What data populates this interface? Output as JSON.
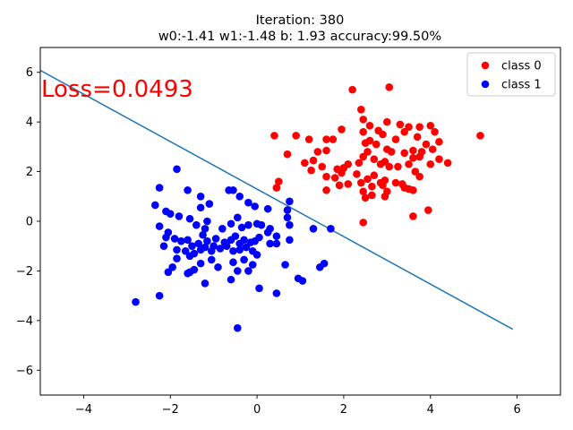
{
  "chart_data": {
    "type": "scatter",
    "title_line1": "Iteration: 380",
    "title_line2": "w0:-1.41 w1:-1.48 b: 1.93 accuracy:99.50%",
    "annotation": "Loss=0.0493",
    "annotation_color": "#ff0000",
    "xlim": [
      -5,
      7
    ],
    "ylim": [
      -7,
      7
    ],
    "xticks": [
      -4,
      -2,
      0,
      2,
      4,
      6
    ],
    "yticks": [
      -6,
      -4,
      -2,
      0,
      2,
      4,
      6
    ],
    "legend_position": "top-right",
    "decision_line": {
      "x": [
        -5,
        5.9
      ],
      "y": [
        6.08,
        -4.35
      ],
      "color": "#1f77b4"
    },
    "series": [
      {
        "name": "class 0",
        "color": "#ff0000",
        "points": [
          [
            2.2,
            5.3
          ],
          [
            3.05,
            5.4
          ],
          [
            2.4,
            4.5
          ],
          [
            2.45,
            4.1
          ],
          [
            3.0,
            4.0
          ],
          [
            3.3,
            3.9
          ],
          [
            3.5,
            3.8
          ],
          [
            3.75,
            3.8
          ],
          [
            3.4,
            3.6
          ],
          [
            4.0,
            3.85
          ],
          [
            4.1,
            3.6
          ],
          [
            5.15,
            3.45
          ],
          [
            0.4,
            3.45
          ],
          [
            0.9,
            3.45
          ],
          [
            1.2,
            3.3
          ],
          [
            1.6,
            3.3
          ],
          [
            1.75,
            3.3
          ],
          [
            1.95,
            3.7
          ],
          [
            2.45,
            3.6
          ],
          [
            2.8,
            3.65
          ],
          [
            2.9,
            3.5
          ],
          [
            3.2,
            3.3
          ],
          [
            3.7,
            3.4
          ],
          [
            4.2,
            3.2
          ],
          [
            2.6,
            3.25
          ],
          [
            2.75,
            3.1
          ],
          [
            2.5,
            3.15
          ],
          [
            3.0,
            2.9
          ],
          [
            3.1,
            2.8
          ],
          [
            3.4,
            2.75
          ],
          [
            3.6,
            2.85
          ],
          [
            3.8,
            2.8
          ],
          [
            4.05,
            2.9
          ],
          [
            3.9,
            3.1
          ],
          [
            1.4,
            2.8
          ],
          [
            1.6,
            2.85
          ],
          [
            0.7,
            2.7
          ],
          [
            1.1,
            2.35
          ],
          [
            1.3,
            2.45
          ],
          [
            1.5,
            2.2
          ],
          [
            1.25,
            2.05
          ],
          [
            1.85,
            2.1
          ],
          [
            1.95,
            1.95
          ],
          [
            2.0,
            2.15
          ],
          [
            2.1,
            2.3
          ],
          [
            2.35,
            2.35
          ],
          [
            2.45,
            2.6
          ],
          [
            2.55,
            2.8
          ],
          [
            2.7,
            2.5
          ],
          [
            2.85,
            2.3
          ],
          [
            2.95,
            2.4
          ],
          [
            3.05,
            2.2
          ],
          [
            3.25,
            2.2
          ],
          [
            3.5,
            2.3
          ],
          [
            3.6,
            2.55
          ],
          [
            3.75,
            2.6
          ],
          [
            4.0,
            2.3
          ],
          [
            4.2,
            2.5
          ],
          [
            4.4,
            2.35
          ],
          [
            3.65,
            2.0
          ],
          [
            3.75,
            1.8
          ],
          [
            2.3,
            1.9
          ],
          [
            2.55,
            1.7
          ],
          [
            2.7,
            1.85
          ],
          [
            2.85,
            1.55
          ],
          [
            2.95,
            1.65
          ],
          [
            3.2,
            1.55
          ],
          [
            3.35,
            1.5
          ],
          [
            3.5,
            1.3
          ],
          [
            3.6,
            1.25
          ],
          [
            3.4,
            1.35
          ],
          [
            1.6,
            1.8
          ],
          [
            1.8,
            1.75
          ],
          [
            1.9,
            1.45
          ],
          [
            2.1,
            1.5
          ],
          [
            2.4,
            1.55
          ],
          [
            2.65,
            1.4
          ],
          [
            2.9,
            1.45
          ],
          [
            1.6,
            1.25
          ],
          [
            2.45,
            1.2
          ],
          [
            2.5,
            0.95
          ],
          [
            2.65,
            1.05
          ],
          [
            2.95,
            1.0
          ],
          [
            3.0,
            1.2
          ],
          [
            0.5,
            1.6
          ],
          [
            0.45,
            1.35
          ],
          [
            3.6,
            0.2
          ],
          [
            3.95,
            0.45
          ],
          [
            2.45,
            -0.05
          ],
          [
            2.6,
            3.85
          ]
        ]
      },
      {
        "name": "class 1",
        "color": "#0000ff",
        "points": [
          [
            -1.85,
            2.1
          ],
          [
            -1.6,
            1.25
          ],
          [
            -1.3,
            1.0
          ],
          [
            -1.1,
            0.7
          ],
          [
            -1.3,
            0.55
          ],
          [
            -0.65,
            1.25
          ],
          [
            -0.55,
            1.25
          ],
          [
            -0.4,
            1.0
          ],
          [
            -0.2,
            0.75
          ],
          [
            -0.05,
            0.6
          ],
          [
            0.25,
            0.5
          ],
          [
            0.75,
            0.8
          ],
          [
            -2.25,
            1.35
          ],
          [
            -2.35,
            0.65
          ],
          [
            -2.1,
            0.4
          ],
          [
            -2.0,
            0.3
          ],
          [
            -1.8,
            0.2
          ],
          [
            -1.55,
            0.1
          ],
          [
            -1.4,
            -0.15
          ],
          [
            -1.2,
            -0.3
          ],
          [
            -1.15,
            0.0
          ],
          [
            -0.8,
            -0.3
          ],
          [
            -0.6,
            -0.1
          ],
          [
            -0.45,
            0.15
          ],
          [
            -0.35,
            -0.25
          ],
          [
            -0.2,
            -0.15
          ],
          [
            0.0,
            -0.1
          ],
          [
            0.1,
            -0.15
          ],
          [
            0.3,
            -0.3
          ],
          [
            0.7,
            0.15
          ],
          [
            0.7,
            0.45
          ],
          [
            -2.25,
            -0.2
          ],
          [
            -2.1,
            -0.65
          ],
          [
            -2.05,
            -0.45
          ],
          [
            -1.9,
            -0.7
          ],
          [
            -1.75,
            -0.8
          ],
          [
            -1.6,
            -0.75
          ],
          [
            -1.5,
            -1.0
          ],
          [
            -1.35,
            -0.9
          ],
          [
            -1.25,
            -0.55
          ],
          [
            -1.15,
            -0.8
          ],
          [
            -1.0,
            -1.0
          ],
          [
            -0.95,
            -0.7
          ],
          [
            -0.75,
            -0.85
          ],
          [
            -0.6,
            -0.75
          ],
          [
            -0.5,
            -0.6
          ],
          [
            -0.4,
            -0.9
          ],
          [
            -0.3,
            -0.75
          ],
          [
            -0.15,
            -0.85
          ],
          [
            -0.05,
            -0.8
          ],
          [
            0.05,
            -0.65
          ],
          [
            0.25,
            -0.45
          ],
          [
            0.45,
            -0.6
          ],
          [
            0.75,
            -0.75
          ],
          [
            0.75,
            -0.15
          ],
          [
            -2.15,
            -1.0
          ],
          [
            -1.85,
            -1.15
          ],
          [
            -1.65,
            -1.2
          ],
          [
            -1.55,
            -1.4
          ],
          [
            -1.45,
            -1.3
          ],
          [
            -1.3,
            -1.15
          ],
          [
            -1.2,
            -1.05
          ],
          [
            -1.05,
            -1.2
          ],
          [
            -0.85,
            -1.1
          ],
          [
            -0.7,
            -1.0
          ],
          [
            -0.55,
            -1.2
          ],
          [
            -0.4,
            -1.15
          ],
          [
            -0.25,
            -1.05
          ],
          [
            -0.1,
            -1.2
          ],
          [
            0.0,
            -1.35
          ],
          [
            0.3,
            -0.9
          ],
          [
            0.45,
            -0.9
          ],
          [
            1.3,
            -0.3
          ],
          [
            1.7,
            -0.3
          ],
          [
            -1.85,
            -1.5
          ],
          [
            -1.95,
            -1.85
          ],
          [
            -1.6,
            -2.1
          ],
          [
            -1.45,
            -1.95
          ],
          [
            -1.3,
            -1.7
          ],
          [
            -1.05,
            -1.55
          ],
          [
            -0.9,
            -1.85
          ],
          [
            -0.55,
            -1.65
          ],
          [
            -0.3,
            -1.55
          ],
          [
            -0.1,
            -1.75
          ],
          [
            0.65,
            -1.75
          ],
          [
            1.45,
            -1.85
          ],
          [
            1.55,
            -1.7
          ],
          [
            -2.05,
            -2.05
          ],
          [
            -1.55,
            -2.05
          ],
          [
            -1.2,
            -2.5
          ],
          [
            -0.6,
            -2.35
          ],
          [
            -0.45,
            -2.0
          ],
          [
            0.05,
            -2.7
          ],
          [
            0.45,
            -2.9
          ],
          [
            0.95,
            -2.3
          ],
          [
            1.05,
            -2.4
          ],
          [
            -2.8,
            -3.25
          ],
          [
            -2.25,
            -3.0
          ],
          [
            -0.45,
            -4.3
          ],
          [
            -0.2,
            -2.0
          ]
        ]
      }
    ]
  }
}
